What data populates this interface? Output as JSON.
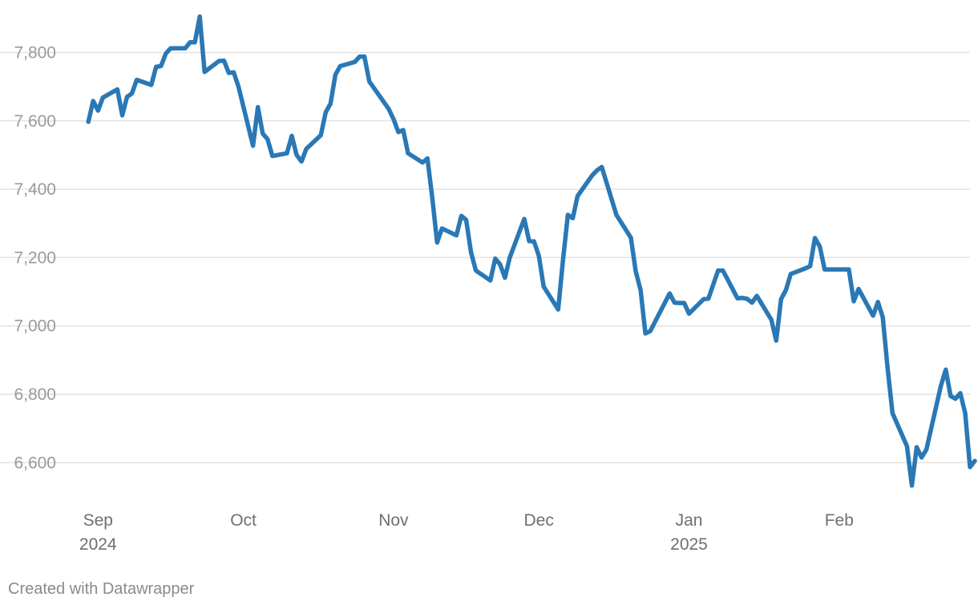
{
  "chart_data": {
    "type": "line",
    "title": "",
    "xlabel": "",
    "ylabel": "",
    "x_range": [
      "2024-08-26",
      "2025-02-28"
    ],
    "ylim": [
      6500,
      7930
    ],
    "grid": true,
    "y_ticks": [
      6600,
      6800,
      7000,
      7200,
      7400,
      7600,
      7800
    ],
    "y_tick_labels": [
      "6,600",
      "6,800",
      "7,000",
      "7,200",
      "7,400",
      "7,600",
      "7,800"
    ],
    "x_ticks": [
      {
        "date": "2024-09-01",
        "label": "Sep",
        "sublabel": "2024"
      },
      {
        "date": "2024-10-01",
        "label": "Oct",
        "sublabel": ""
      },
      {
        "date": "2024-11-01",
        "label": "Nov",
        "sublabel": ""
      },
      {
        "date": "2024-12-01",
        "label": "Dec",
        "sublabel": ""
      },
      {
        "date": "2025-01-01",
        "label": "Jan",
        "sublabel": "2025"
      },
      {
        "date": "2025-02-01",
        "label": "Feb",
        "sublabel": ""
      }
    ],
    "series": [
      {
        "color": "#2a78b5",
        "points": [
          [
            "2024-08-30",
            7597
          ],
          [
            "2024-08-31",
            7658
          ],
          [
            "2024-09-01",
            7630
          ],
          [
            "2024-09-02",
            7668
          ],
          [
            "2024-09-05",
            7692
          ],
          [
            "2024-09-06",
            7616
          ],
          [
            "2024-09-07",
            7670
          ],
          [
            "2024-09-08",
            7680
          ],
          [
            "2024-09-09",
            7720
          ],
          [
            "2024-09-12",
            7705
          ],
          [
            "2024-09-13",
            7758
          ],
          [
            "2024-09-14",
            7760
          ],
          [
            "2024-09-15",
            7797
          ],
          [
            "2024-09-16",
            7812
          ],
          [
            "2024-09-19",
            7812
          ],
          [
            "2024-09-20",
            7830
          ],
          [
            "2024-09-21",
            7830
          ],
          [
            "2024-09-22",
            7905
          ],
          [
            "2024-09-23",
            7743
          ],
          [
            "2024-09-26",
            7775
          ],
          [
            "2024-09-27",
            7776
          ],
          [
            "2024-09-28",
            7740
          ],
          [
            "2024-09-29",
            7742
          ],
          [
            "2024-09-30",
            7700
          ],
          [
            "2024-10-03",
            7527
          ],
          [
            "2024-10-04",
            7640
          ],
          [
            "2024-10-05",
            7563
          ],
          [
            "2024-10-06",
            7546
          ],
          [
            "2024-10-07",
            7497
          ],
          [
            "2024-10-10",
            7505
          ],
          [
            "2024-10-11",
            7556
          ],
          [
            "2024-10-12",
            7500
          ],
          [
            "2024-10-13",
            7481
          ],
          [
            "2024-10-14",
            7518
          ],
          [
            "2024-10-17",
            7558
          ],
          [
            "2024-10-18",
            7625
          ],
          [
            "2024-10-19",
            7650
          ],
          [
            "2024-10-20",
            7735
          ],
          [
            "2024-10-21",
            7760
          ],
          [
            "2024-10-24",
            7772
          ],
          [
            "2024-10-25",
            7788
          ],
          [
            "2024-10-26",
            7788
          ],
          [
            "2024-10-27",
            7715
          ],
          [
            "2024-10-31",
            7635
          ],
          [
            "2024-11-01",
            7605
          ],
          [
            "2024-11-02",
            7567
          ],
          [
            "2024-11-03",
            7573
          ],
          [
            "2024-11-04",
            7505
          ],
          [
            "2024-11-07",
            7478
          ],
          [
            "2024-11-08",
            7490
          ],
          [
            "2024-11-09",
            7375
          ],
          [
            "2024-11-10",
            7244
          ],
          [
            "2024-11-11",
            7285
          ],
          [
            "2024-11-14",
            7265
          ],
          [
            "2024-11-15",
            7322
          ],
          [
            "2024-11-16",
            7310
          ],
          [
            "2024-11-17",
            7215
          ],
          [
            "2024-11-18",
            7162
          ],
          [
            "2024-11-21",
            7133
          ],
          [
            "2024-11-22",
            7197
          ],
          [
            "2024-11-23",
            7180
          ],
          [
            "2024-11-24",
            7141
          ],
          [
            "2024-11-25",
            7200
          ],
          [
            "2024-11-28",
            7313
          ],
          [
            "2024-11-29",
            7248
          ],
          [
            "2024-11-30",
            7247
          ],
          [
            "2024-12-01",
            7205
          ],
          [
            "2024-12-02",
            7115
          ],
          [
            "2024-12-05",
            7048
          ],
          [
            "2024-12-06",
            7195
          ],
          [
            "2024-12-07",
            7325
          ],
          [
            "2024-12-08",
            7315
          ],
          [
            "2024-12-09",
            7380
          ],
          [
            "2024-12-12",
            7440
          ],
          [
            "2024-12-13",
            7455
          ],
          [
            "2024-12-14",
            7465
          ],
          [
            "2024-12-17",
            7325
          ],
          [
            "2024-12-20",
            7258
          ],
          [
            "2024-12-21",
            7160
          ],
          [
            "2024-12-22",
            7105
          ],
          [
            "2024-12-23",
            6978
          ],
          [
            "2024-12-24",
            6985
          ],
          [
            "2024-12-28",
            7095
          ],
          [
            "2024-12-29",
            7068
          ],
          [
            "2024-12-30",
            7067
          ],
          [
            "2024-12-31",
            7067
          ],
          [
            "2025-01-01",
            7036
          ],
          [
            "2025-01-04",
            7078
          ],
          [
            "2025-01-05",
            7080
          ],
          [
            "2025-01-07",
            7162
          ],
          [
            "2025-01-08",
            7162
          ],
          [
            "2025-01-11",
            7081
          ],
          [
            "2025-01-12",
            7082
          ],
          [
            "2025-01-13",
            7079
          ],
          [
            "2025-01-14",
            7068
          ],
          [
            "2025-01-15",
            7088
          ],
          [
            "2025-01-18",
            7018
          ],
          [
            "2025-01-19",
            6957
          ],
          [
            "2025-01-20",
            7078
          ],
          [
            "2025-01-21",
            7105
          ],
          [
            "2025-01-22",
            7152
          ],
          [
            "2025-01-25",
            7168
          ],
          [
            "2025-01-26",
            7175
          ],
          [
            "2025-01-27",
            7257
          ],
          [
            "2025-01-28",
            7232
          ],
          [
            "2025-01-29",
            7165
          ],
          [
            "2025-02-01",
            7165
          ],
          [
            "2025-02-02",
            7165
          ],
          [
            "2025-02-03",
            7165
          ],
          [
            "2025-02-04",
            7072
          ],
          [
            "2025-02-05",
            7108
          ],
          [
            "2025-02-08",
            7030
          ],
          [
            "2025-02-09",
            7070
          ],
          [
            "2025-02-10",
            7025
          ],
          [
            "2025-02-11",
            6875
          ],
          [
            "2025-02-12",
            6745
          ],
          [
            "2025-02-15",
            6648
          ],
          [
            "2025-02-16",
            6533
          ],
          [
            "2025-02-17",
            6645
          ],
          [
            "2025-02-18",
            6615
          ],
          [
            "2025-02-19",
            6638
          ],
          [
            "2025-02-22",
            6825
          ],
          [
            "2025-02-23",
            6872
          ],
          [
            "2025-02-24",
            6795
          ],
          [
            "2025-02-25",
            6787
          ],
          [
            "2025-02-26",
            6803
          ],
          [
            "2025-02-27",
            6745
          ],
          [
            "2025-02-28",
            6587
          ],
          [
            "2025-03-01",
            6605
          ]
        ]
      }
    ]
  },
  "footer": {
    "credit": "Created with Datawrapper"
  }
}
